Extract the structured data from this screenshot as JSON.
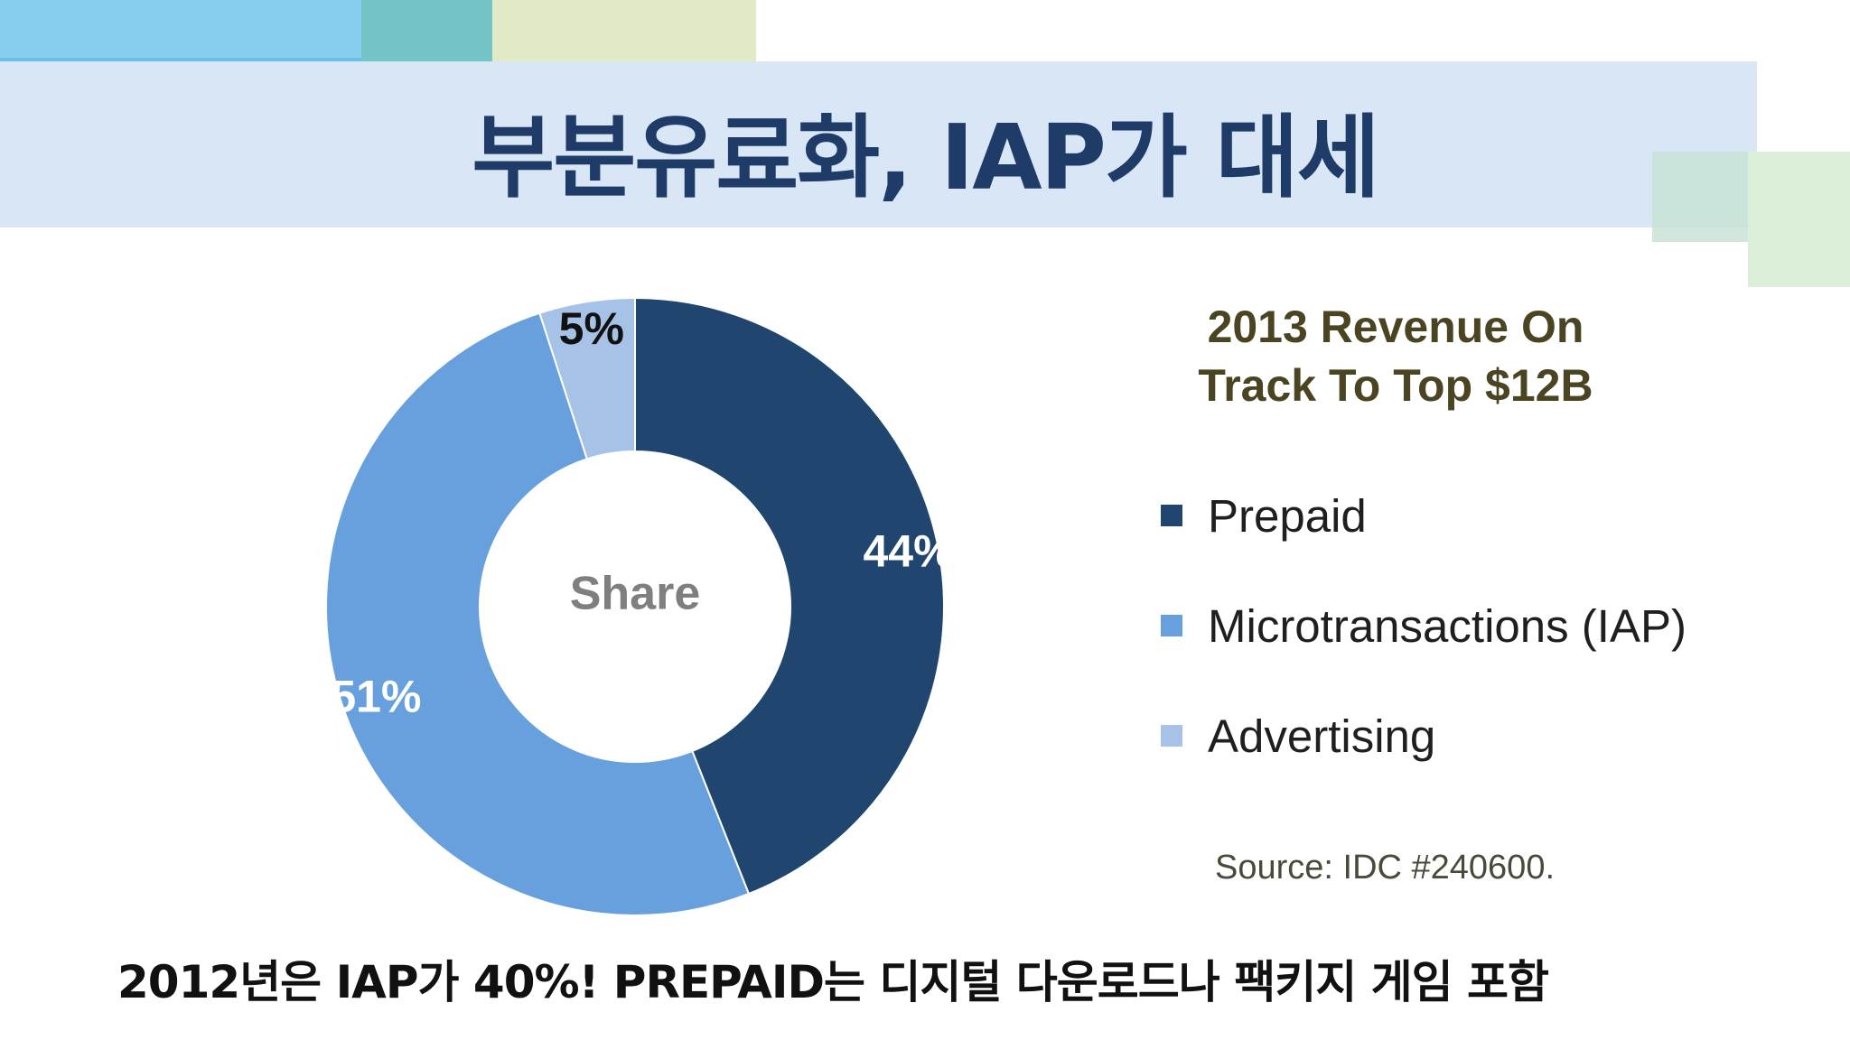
{
  "slide": {
    "title": "부분유료화, IAP가 대세",
    "caption": "2012년은 IAP가 40%! PREPAID는 디지털 다운로드나 팩키지 게임 포함",
    "source": "Source: IDC #240600."
  },
  "colors": {
    "title": "#1f3c68",
    "prepaid": "#20466f",
    "microtransactions": "#67a0dd",
    "advertising": "#a6c2e6"
  },
  "chart_data": {
    "type": "pie",
    "title": "2013 Revenue On Track To Top $12B",
    "title_lines": [
      "2013 Revenue On",
      "Track To Top $12B"
    ],
    "center_label": "Share",
    "categories": [
      "Prepaid",
      "Microtransactions (IAP)",
      "Advertising"
    ],
    "values": [
      44,
      51,
      5
    ],
    "labels": [
      "44%",
      "51%",
      "5%"
    ],
    "colors": [
      "#20466f",
      "#67a0dd",
      "#a6c2e6"
    ],
    "legend_position": "right"
  }
}
